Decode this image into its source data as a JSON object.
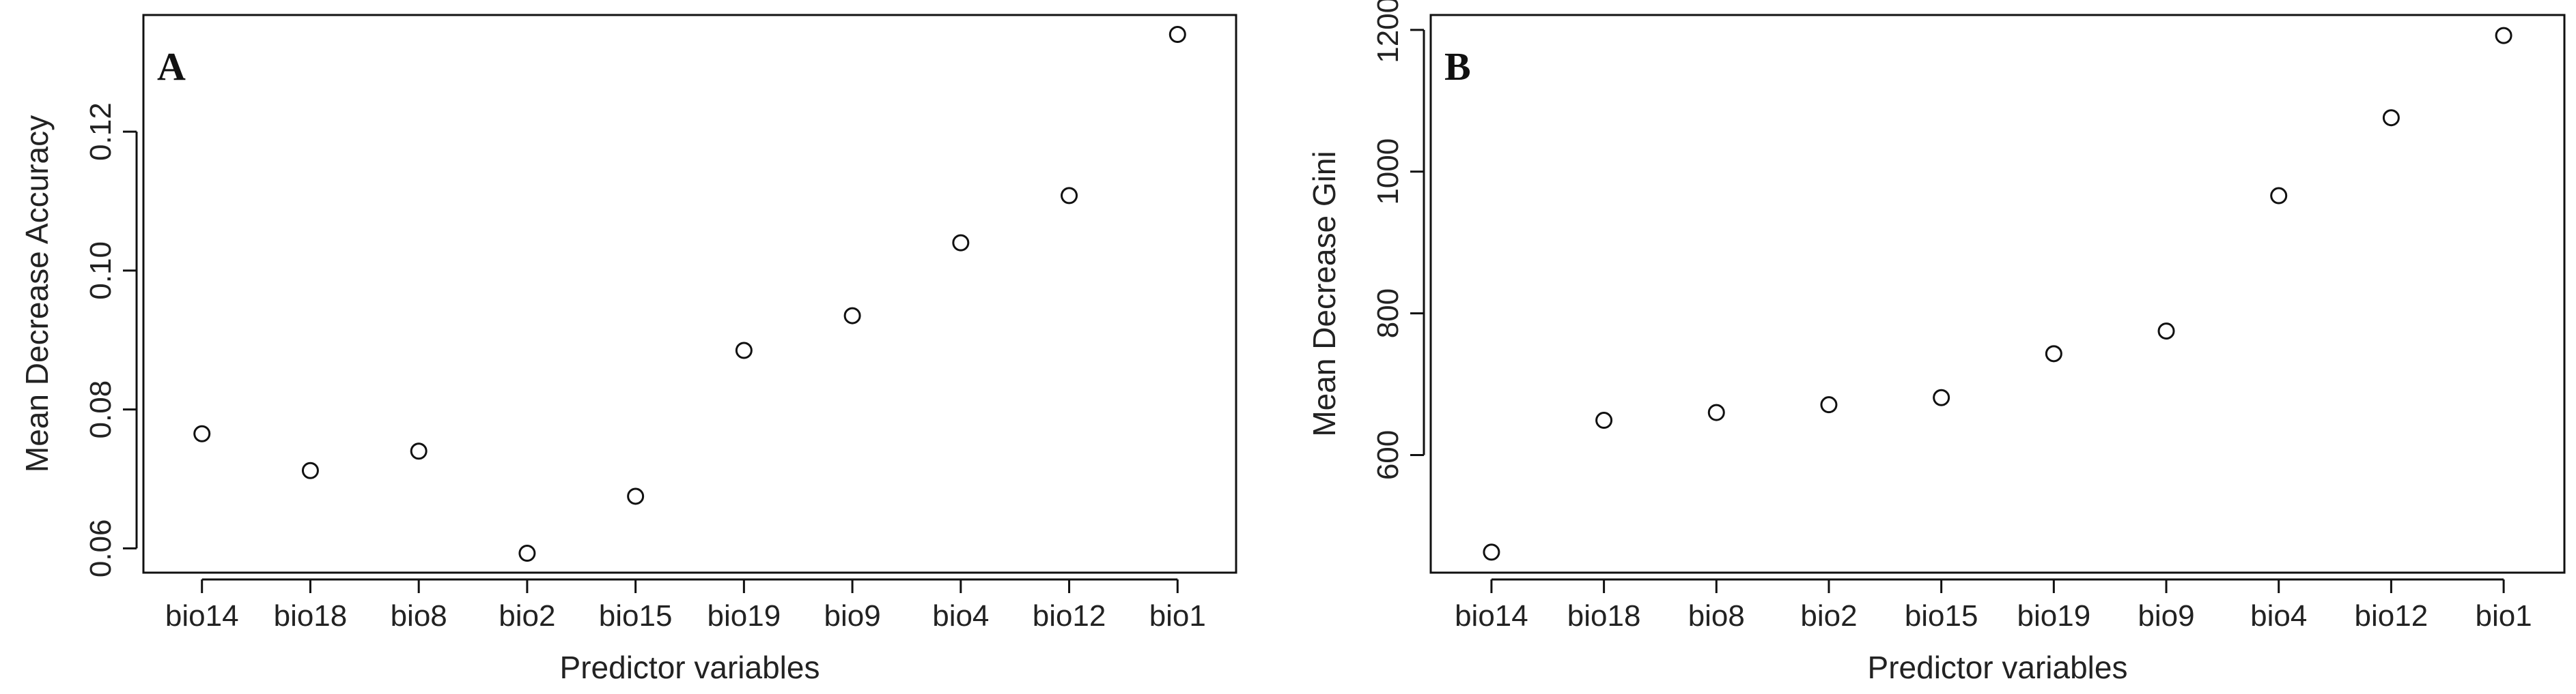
{
  "chart_data": [
    {
      "type": "scatter",
      "panel_label": "A",
      "title": "",
      "xlabel": "Predictor variables",
      "ylabel": "Mean Decrease Accuracy",
      "categories": [
        "bio14",
        "bio18",
        "bio8",
        "bio2",
        "bio15",
        "bio19",
        "bio9",
        "bio4",
        "bio12",
        "bio1"
      ],
      "values": [
        0.0765,
        0.0712,
        0.074,
        0.0593,
        0.0675,
        0.0885,
        0.0935,
        0.104,
        0.1108,
        0.134
      ],
      "yticks": [
        0.06,
        0.08,
        0.1,
        0.12
      ],
      "ytick_labels": [
        "0.06",
        "0.08",
        "0.10",
        "0.12"
      ],
      "ylim": [
        0.0565,
        0.1368
      ],
      "grid": false,
      "legend": "none"
    },
    {
      "type": "scatter",
      "panel_label": "B",
      "title": "",
      "xlabel": "Predictor variables",
      "ylabel": "Mean Decrease Gini",
      "categories": [
        "bio14",
        "bio18",
        "bio8",
        "bio2",
        "bio15",
        "bio19",
        "bio9",
        "bio4",
        "bio12",
        "bio1"
      ],
      "values": [
        463,
        649,
        660,
        671,
        681,
        743,
        775,
        966,
        1076,
        1192
      ],
      "yticks": [
        600,
        800,
        1000,
        1200
      ],
      "ytick_labels": [
        "600",
        "800",
        "1000",
        "1200"
      ],
      "ylim": [
        434,
        1221
      ],
      "grid": false,
      "legend": "none"
    }
  ]
}
